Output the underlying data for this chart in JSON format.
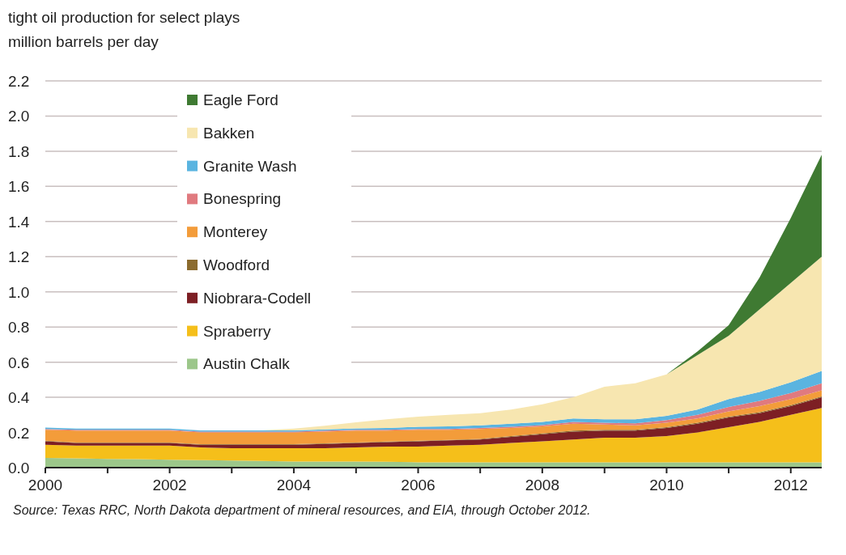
{
  "chart_data": {
    "type": "area",
    "stacked": true,
    "title": "tight oil production for select plays",
    "ylabel": "million barrels per day",
    "annotations": [
      "Source: Texas RRC, North Dakota department of mineral resources, and EIA, through October 2012."
    ],
    "x": [
      "2000-01",
      "2000-07",
      "2001-01",
      "2001-07",
      "2002-01",
      "2002-07",
      "2003-01",
      "2003-07",
      "2004-01",
      "2004-07",
      "2005-01",
      "2005-07",
      "2006-01",
      "2006-07",
      "2007-01",
      "2007-07",
      "2008-01",
      "2008-07",
      "2009-01",
      "2009-07",
      "2010-01",
      "2010-07",
      "2011-01",
      "2011-07",
      "2012-01",
      "2012-07"
    ],
    "xlim": [
      "2000-01",
      "2012-07"
    ],
    "xticks": [
      {
        "value": "2000",
        "label": "2000"
      },
      {
        "value": "2001",
        "label": null
      },
      {
        "value": "2002",
        "label": "2002"
      },
      {
        "value": "2003",
        "label": null
      },
      {
        "value": "2004",
        "label": "2004"
      },
      {
        "value": "2005",
        "label": null
      },
      {
        "value": "2006",
        "label": "2006"
      },
      {
        "value": "2007",
        "label": null
      },
      {
        "value": "2008",
        "label": "2008"
      },
      {
        "value": "2009",
        "label": null
      },
      {
        "value": "2010",
        "label": "2010"
      },
      {
        "value": "2011",
        "label": null
      },
      {
        "value": "2012",
        "label": "2012"
      }
    ],
    "ylim": [
      0,
      2.2
    ],
    "yticks": [
      {
        "value": 0,
        "label": "0.0"
      },
      {
        "value": 0.2,
        "label": "0.2"
      },
      {
        "value": 0.4,
        "label": "0.4"
      },
      {
        "value": 0.6,
        "label": "0.6"
      },
      {
        "value": 0.8,
        "label": "0.8"
      },
      {
        "value": 1,
        "label": "1.0"
      },
      {
        "value": 1.2,
        "label": "1.2"
      },
      {
        "value": 1.4,
        "label": "1.4"
      },
      {
        "value": 1.6,
        "label": "1.6"
      },
      {
        "value": 1.8,
        "label": "1.8"
      },
      {
        "value": 2,
        "label": "2.0"
      },
      {
        "value": 2.2,
        "label": "2.2"
      }
    ],
    "grid": "y",
    "legend": "top left",
    "series": [
      {
        "name": "Austin Chalk",
        "color": "#9cc78a",
        "values": [
          0.055,
          0.053,
          0.05,
          0.048,
          0.045,
          0.043,
          0.04,
          0.038,
          0.035,
          0.035,
          0.035,
          0.033,
          0.03,
          0.03,
          0.03,
          0.03,
          0.03,
          0.03,
          0.03,
          0.03,
          0.03,
          0.03,
          0.03,
          0.03,
          0.03,
          0.03
        ]
      },
      {
        "name": "Spraberry",
        "color": "#f5bf1a",
        "values": [
          0.075,
          0.072,
          0.075,
          0.077,
          0.08,
          0.072,
          0.07,
          0.072,
          0.075,
          0.075,
          0.08,
          0.087,
          0.09,
          0.095,
          0.1,
          0.11,
          0.12,
          0.13,
          0.14,
          0.14,
          0.15,
          0.17,
          0.2,
          0.23,
          0.27,
          0.31
        ]
      },
      {
        "name": "Niobrara-Codell",
        "color": "#7d1f24",
        "values": [
          0.02,
          0.015,
          0.015,
          0.015,
          0.015,
          0.015,
          0.02,
          0.02,
          0.02,
          0.025,
          0.025,
          0.025,
          0.03,
          0.03,
          0.03,
          0.035,
          0.04,
          0.045,
          0.04,
          0.04,
          0.045,
          0.05,
          0.055,
          0.05,
          0.05,
          0.06
        ]
      },
      {
        "name": "Woodford",
        "color": "#8b6b2e",
        "values": [
          0.003,
          0.003,
          0.003,
          0.003,
          0.003,
          0.003,
          0.003,
          0.003,
          0.003,
          0.003,
          0.003,
          0.003,
          0.003,
          0.003,
          0.003,
          0.004,
          0.004,
          0.005,
          0.005,
          0.005,
          0.005,
          0.005,
          0.005,
          0.005,
          0.005,
          0.005
        ]
      },
      {
        "name": "Monterey",
        "color": "#f39c3a",
        "values": [
          0.062,
          0.067,
          0.067,
          0.067,
          0.067,
          0.067,
          0.067,
          0.067,
          0.067,
          0.067,
          0.067,
          0.062,
          0.062,
          0.057,
          0.057,
          0.046,
          0.041,
          0.04,
          0.03,
          0.025,
          0.025,
          0.025,
          0.03,
          0.035,
          0.035,
          0.035
        ]
      },
      {
        "name": "Bonespring",
        "color": "#e07a7f",
        "values": [
          0.005,
          0.005,
          0.005,
          0.005,
          0.005,
          0.005,
          0.005,
          0.005,
          0.005,
          0.005,
          0.005,
          0.005,
          0.005,
          0.005,
          0.005,
          0.007,
          0.007,
          0.01,
          0.01,
          0.012,
          0.015,
          0.02,
          0.025,
          0.03,
          0.035,
          0.04
        ]
      },
      {
        "name": "Granite Wash",
        "color": "#5ab4e0",
        "values": [
          0.008,
          0.007,
          0.007,
          0.007,
          0.007,
          0.007,
          0.007,
          0.007,
          0.007,
          0.008,
          0.008,
          0.01,
          0.012,
          0.015,
          0.015,
          0.018,
          0.018,
          0.02,
          0.02,
          0.023,
          0.025,
          0.03,
          0.045,
          0.05,
          0.06,
          0.07
        ]
      },
      {
        "name": "Bakken",
        "color": "#f7e6b0",
        "values": [
          0,
          0,
          0,
          0,
          0,
          0,
          0,
          0,
          0.01,
          0.02,
          0.035,
          0.05,
          0.058,
          0.065,
          0.07,
          0.08,
          0.1,
          0.12,
          0.185,
          0.205,
          0.235,
          0.31,
          0.36,
          0.47,
          0.565,
          0.65
        ]
      },
      {
        "name": "Eagle Ford",
        "color": "#3f7a32",
        "values": [
          0,
          0,
          0,
          0,
          0,
          0,
          0,
          0,
          0,
          0,
          0,
          0,
          0,
          0,
          0,
          0,
          0,
          0,
          0,
          0,
          0,
          0.02,
          0.06,
          0.18,
          0.37,
          0.58
        ]
      }
    ]
  }
}
